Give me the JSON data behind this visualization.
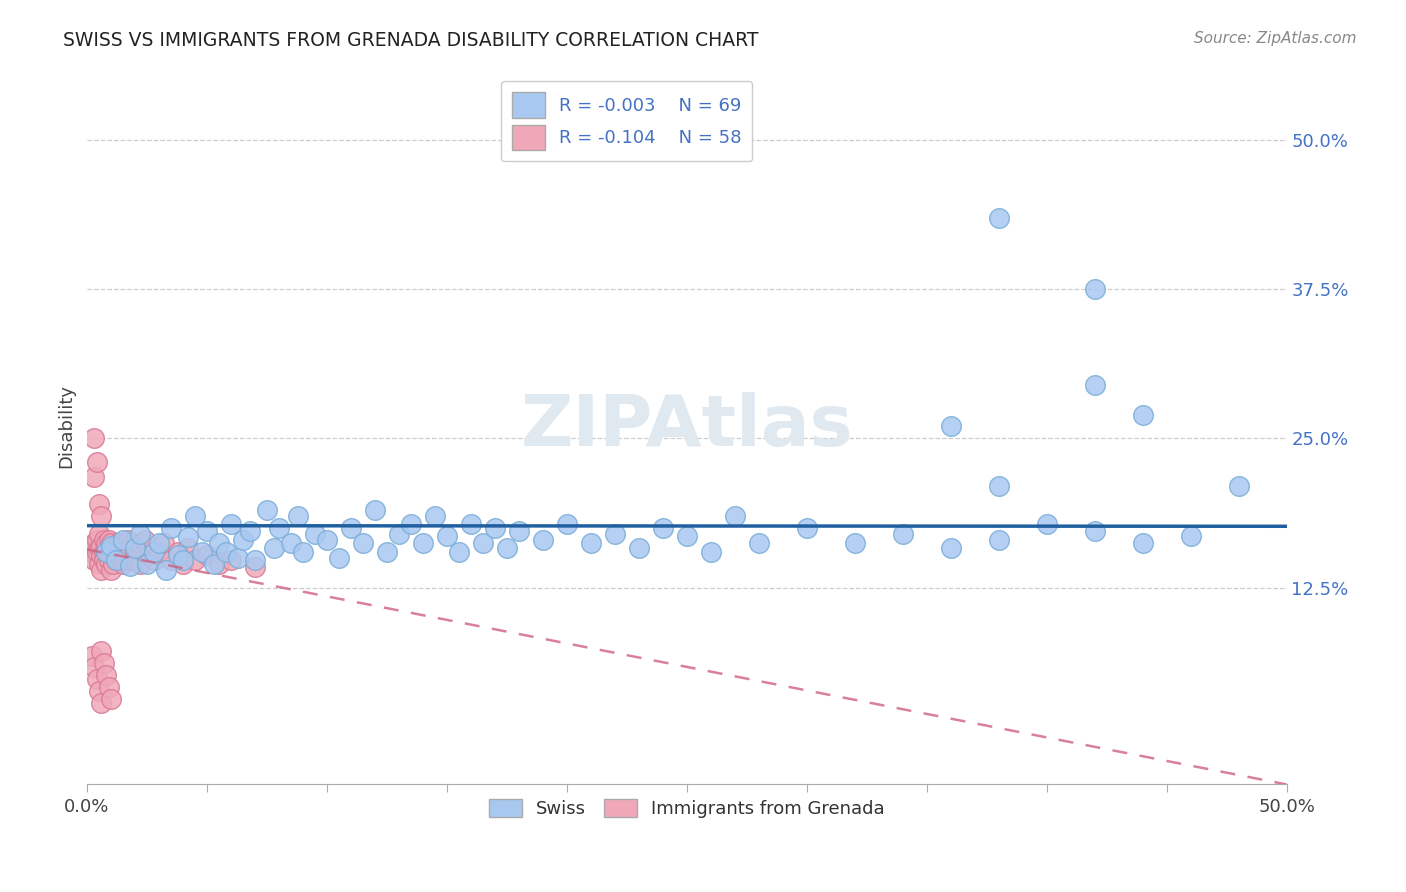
{
  "title": "SWISS VS IMMIGRANTS FROM GRENADA DISABILITY CORRELATION CHART",
  "source": "Source: ZipAtlas.com",
  "ylabel": "Disability",
  "xlim": [
    0.0,
    0.5
  ],
  "ylim": [
    -0.05,
    0.55
  ],
  "ytick_labels": [
    "12.5%",
    "25.0%",
    "37.5%",
    "50.0%"
  ],
  "ytick_values": [
    0.125,
    0.25,
    0.375,
    0.5
  ],
  "legend_r_swiss": "R = -0.003",
  "legend_n_swiss": "N = 69",
  "legend_r_grenada": "R = -0.104",
  "legend_n_grenada": "N = 58",
  "swiss_color": "#a8c8f0",
  "swiss_edge_color": "#7aadd8",
  "grenada_color": "#f0a8b8",
  "grenada_edge_color": "#d87898",
  "swiss_line_color": "#2060a0",
  "grenada_line_color": "#d06080",
  "background_color": "#ffffff",
  "grid_color": "#cccccc",
  "text_color": "#444444",
  "tick_label_color": "#4472c4",
  "watermark_color": "#e0e8f0",
  "swiss_points": [
    [
      0.008,
      0.155
    ],
    [
      0.01,
      0.16
    ],
    [
      0.012,
      0.148
    ],
    [
      0.015,
      0.165
    ],
    [
      0.018,
      0.143
    ],
    [
      0.02,
      0.158
    ],
    [
      0.022,
      0.17
    ],
    [
      0.025,
      0.145
    ],
    [
      0.028,
      0.155
    ],
    [
      0.03,
      0.162
    ],
    [
      0.033,
      0.14
    ],
    [
      0.035,
      0.175
    ],
    [
      0.038,
      0.152
    ],
    [
      0.04,
      0.148
    ],
    [
      0.042,
      0.167
    ],
    [
      0.045,
      0.185
    ],
    [
      0.048,
      0.155
    ],
    [
      0.05,
      0.172
    ],
    [
      0.053,
      0.145
    ],
    [
      0.055,
      0.162
    ],
    [
      0.058,
      0.155
    ],
    [
      0.06,
      0.178
    ],
    [
      0.063,
      0.15
    ],
    [
      0.065,
      0.165
    ],
    [
      0.068,
      0.172
    ],
    [
      0.07,
      0.148
    ],
    [
      0.075,
      0.19
    ],
    [
      0.078,
      0.158
    ],
    [
      0.08,
      0.175
    ],
    [
      0.085,
      0.162
    ],
    [
      0.088,
      0.185
    ],
    [
      0.09,
      0.155
    ],
    [
      0.095,
      0.17
    ],
    [
      0.1,
      0.165
    ],
    [
      0.105,
      0.15
    ],
    [
      0.11,
      0.175
    ],
    [
      0.115,
      0.162
    ],
    [
      0.12,
      0.19
    ],
    [
      0.125,
      0.155
    ],
    [
      0.13,
      0.17
    ],
    [
      0.135,
      0.178
    ],
    [
      0.14,
      0.162
    ],
    [
      0.145,
      0.185
    ],
    [
      0.15,
      0.168
    ],
    [
      0.155,
      0.155
    ],
    [
      0.16,
      0.178
    ],
    [
      0.165,
      0.162
    ],
    [
      0.17,
      0.175
    ],
    [
      0.175,
      0.158
    ],
    [
      0.18,
      0.172
    ],
    [
      0.19,
      0.165
    ],
    [
      0.2,
      0.178
    ],
    [
      0.21,
      0.162
    ],
    [
      0.22,
      0.17
    ],
    [
      0.23,
      0.158
    ],
    [
      0.24,
      0.175
    ],
    [
      0.25,
      0.168
    ],
    [
      0.26,
      0.155
    ],
    [
      0.27,
      0.185
    ],
    [
      0.28,
      0.162
    ],
    [
      0.3,
      0.175
    ],
    [
      0.32,
      0.162
    ],
    [
      0.34,
      0.17
    ],
    [
      0.36,
      0.158
    ],
    [
      0.38,
      0.165
    ],
    [
      0.4,
      0.178
    ],
    [
      0.42,
      0.172
    ],
    [
      0.44,
      0.162
    ],
    [
      0.46,
      0.168
    ]
  ],
  "swiss_outliers": [
    [
      0.36,
      0.26
    ],
    [
      0.38,
      0.21
    ],
    [
      0.42,
      0.295
    ],
    [
      0.44,
      0.27
    ],
    [
      0.48,
      0.21
    ],
    [
      0.38,
      0.435
    ],
    [
      0.42,
      0.375
    ]
  ],
  "grenada_points": [
    [
      0.002,
      0.155
    ],
    [
      0.003,
      0.148
    ],
    [
      0.003,
      0.162
    ],
    [
      0.004,
      0.155
    ],
    [
      0.004,
      0.165
    ],
    [
      0.005,
      0.145
    ],
    [
      0.005,
      0.158
    ],
    [
      0.005,
      0.17
    ],
    [
      0.006,
      0.152
    ],
    [
      0.006,
      0.16
    ],
    [
      0.006,
      0.14
    ],
    [
      0.007,
      0.155
    ],
    [
      0.007,
      0.165
    ],
    [
      0.007,
      0.148
    ],
    [
      0.008,
      0.158
    ],
    [
      0.008,
      0.145
    ],
    [
      0.008,
      0.162
    ],
    [
      0.009,
      0.155
    ],
    [
      0.009,
      0.148
    ],
    [
      0.009,
      0.165
    ],
    [
      0.01,
      0.14
    ],
    [
      0.01,
      0.152
    ],
    [
      0.01,
      0.162
    ],
    [
      0.011,
      0.155
    ],
    [
      0.011,
      0.145
    ],
    [
      0.012,
      0.158
    ],
    [
      0.012,
      0.148
    ],
    [
      0.013,
      0.155
    ],
    [
      0.013,
      0.162
    ],
    [
      0.014,
      0.148
    ],
    [
      0.014,
      0.158
    ],
    [
      0.015,
      0.155
    ],
    [
      0.015,
      0.145
    ],
    [
      0.016,
      0.162
    ],
    [
      0.016,
      0.148
    ],
    [
      0.017,
      0.155
    ],
    [
      0.017,
      0.165
    ],
    [
      0.018,
      0.148
    ],
    [
      0.018,
      0.158
    ],
    [
      0.02,
      0.155
    ],
    [
      0.02,
      0.148
    ],
    [
      0.022,
      0.162
    ],
    [
      0.022,
      0.145
    ],
    [
      0.024,
      0.155
    ],
    [
      0.024,
      0.165
    ],
    [
      0.026,
      0.152
    ],
    [
      0.028,
      0.148
    ],
    [
      0.03,
      0.155
    ],
    [
      0.032,
      0.162
    ],
    [
      0.035,
      0.148
    ],
    [
      0.038,
      0.155
    ],
    [
      0.04,
      0.145
    ],
    [
      0.042,
      0.158
    ],
    [
      0.045,
      0.148
    ],
    [
      0.05,
      0.152
    ],
    [
      0.055,
      0.145
    ],
    [
      0.06,
      0.148
    ],
    [
      0.07,
      0.142
    ]
  ],
  "grenada_outliers": [
    [
      0.003,
      0.25
    ],
    [
      0.003,
      0.218
    ],
    [
      0.004,
      0.23
    ],
    [
      0.005,
      0.195
    ],
    [
      0.006,
      0.185
    ],
    [
      0.002,
      0.068
    ],
    [
      0.003,
      0.058
    ],
    [
      0.004,
      0.048
    ],
    [
      0.005,
      0.038
    ],
    [
      0.006,
      0.028
    ],
    [
      0.006,
      0.072
    ],
    [
      0.007,
      0.062
    ],
    [
      0.008,
      0.052
    ],
    [
      0.009,
      0.042
    ],
    [
      0.01,
      0.032
    ]
  ]
}
